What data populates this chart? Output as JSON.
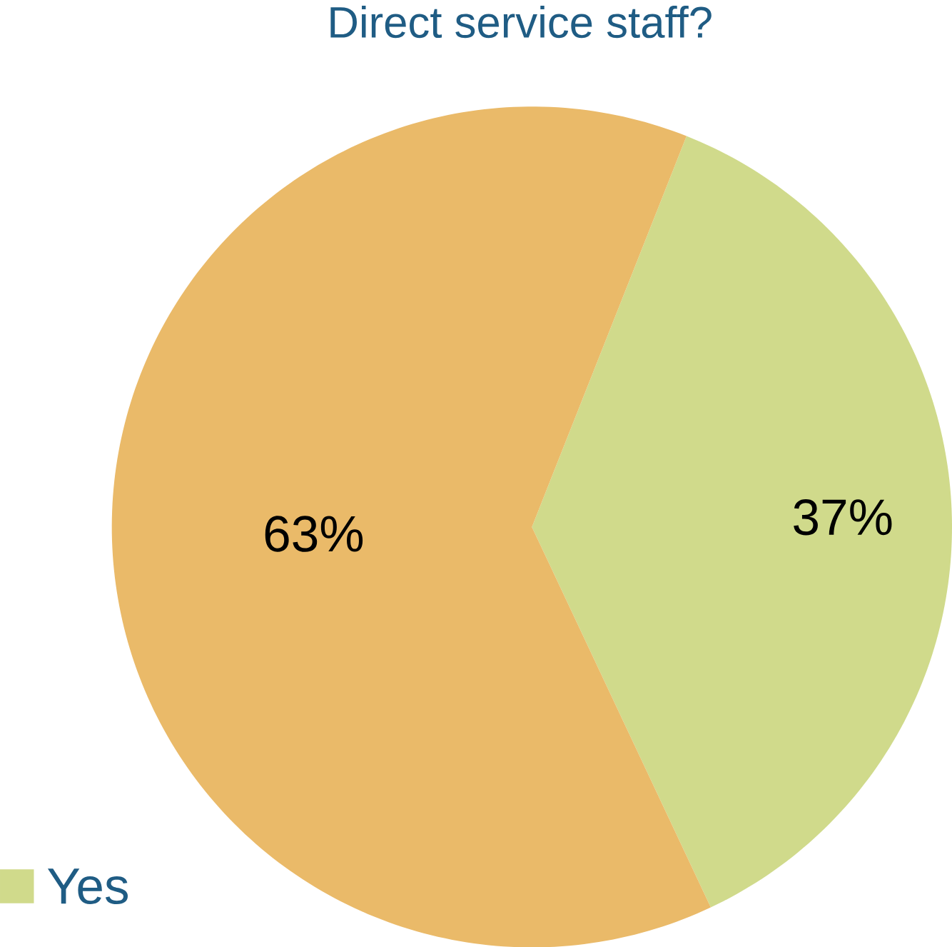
{
  "chart_data": {
    "type": "pie",
    "title": "Direct service staff?",
    "categories": [
      "Yes",
      null
    ],
    "values": [
      37,
      63
    ],
    "colors": [
      "#d0da8b",
      "#eaba69"
    ],
    "value_labels": [
      "37%",
      "63%"
    ],
    "legend": "bottom left"
  }
}
